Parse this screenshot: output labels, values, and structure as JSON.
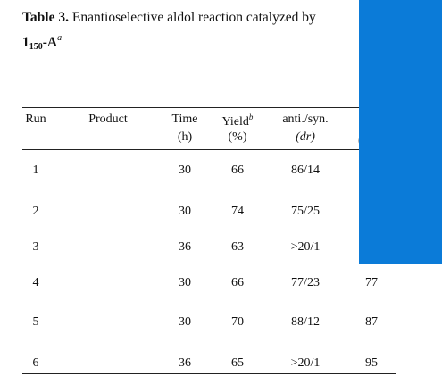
{
  "caption": {
    "label": "Table 3.",
    "text": "Enantioselective aldol reaction catalyzed by",
    "catalyst_main": "1",
    "catalyst_sub": "150",
    "catalyst_suffix": "-A",
    "footnote_mark": "a"
  },
  "headers": {
    "run": "Run",
    "product": "Product",
    "time": "Time",
    "time_unit": "(h)",
    "yield": "Yield",
    "yield_mark": "b",
    "yield_unit": "(%)",
    "antisyn": "anti./syn.",
    "antisyn_unit": "(dr)",
    "partial": "("
  },
  "rows": [
    {
      "run": "1",
      "time": "30",
      "yield": "66",
      "dr": "86/14",
      "ee": ""
    },
    {
      "run": "2",
      "time": "30",
      "yield": "74",
      "dr": "75/25",
      "ee": ""
    },
    {
      "run": "3",
      "time": "36",
      "yield": "63",
      "dr": ">20/1",
      "ee": ""
    },
    {
      "run": "4",
      "time": "30",
      "yield": "66",
      "dr": "77/23",
      "ee": "77"
    },
    {
      "run": "5",
      "time": "30",
      "yield": "70",
      "dr": "88/12",
      "ee": "87"
    },
    {
      "run": "6",
      "time": "36",
      "yield": "65",
      "dr": ">20/1",
      "ee": "95"
    }
  ],
  "colors": {
    "overlay": "#0b7bd8"
  }
}
